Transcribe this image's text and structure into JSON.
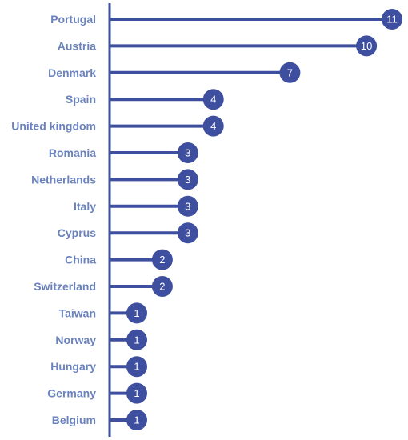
{
  "chart_data": {
    "type": "bar",
    "orientation": "horizontal",
    "style": "lollipop",
    "categories": [
      "Portugal",
      "Austria",
      "Denmark",
      "Spain",
      "United kingdom",
      "Romania",
      "Netherlands",
      "Italy",
      "Cyprus",
      "China",
      "Switzerland",
      "Taiwan",
      "Norway",
      "Hungary",
      "Germany",
      "Belgium"
    ],
    "values": [
      11,
      10,
      7,
      4,
      4,
      3,
      3,
      3,
      3,
      2,
      2,
      1,
      1,
      1,
      1,
      1
    ],
    "xlim": [
      0,
      11
    ],
    "grid": false,
    "legend": "none",
    "title": "",
    "xlabel": "",
    "ylabel": ""
  },
  "colors": {
    "bar": "#3e4fa0",
    "label": "#6a82bd",
    "value_text": "#ffffff"
  }
}
